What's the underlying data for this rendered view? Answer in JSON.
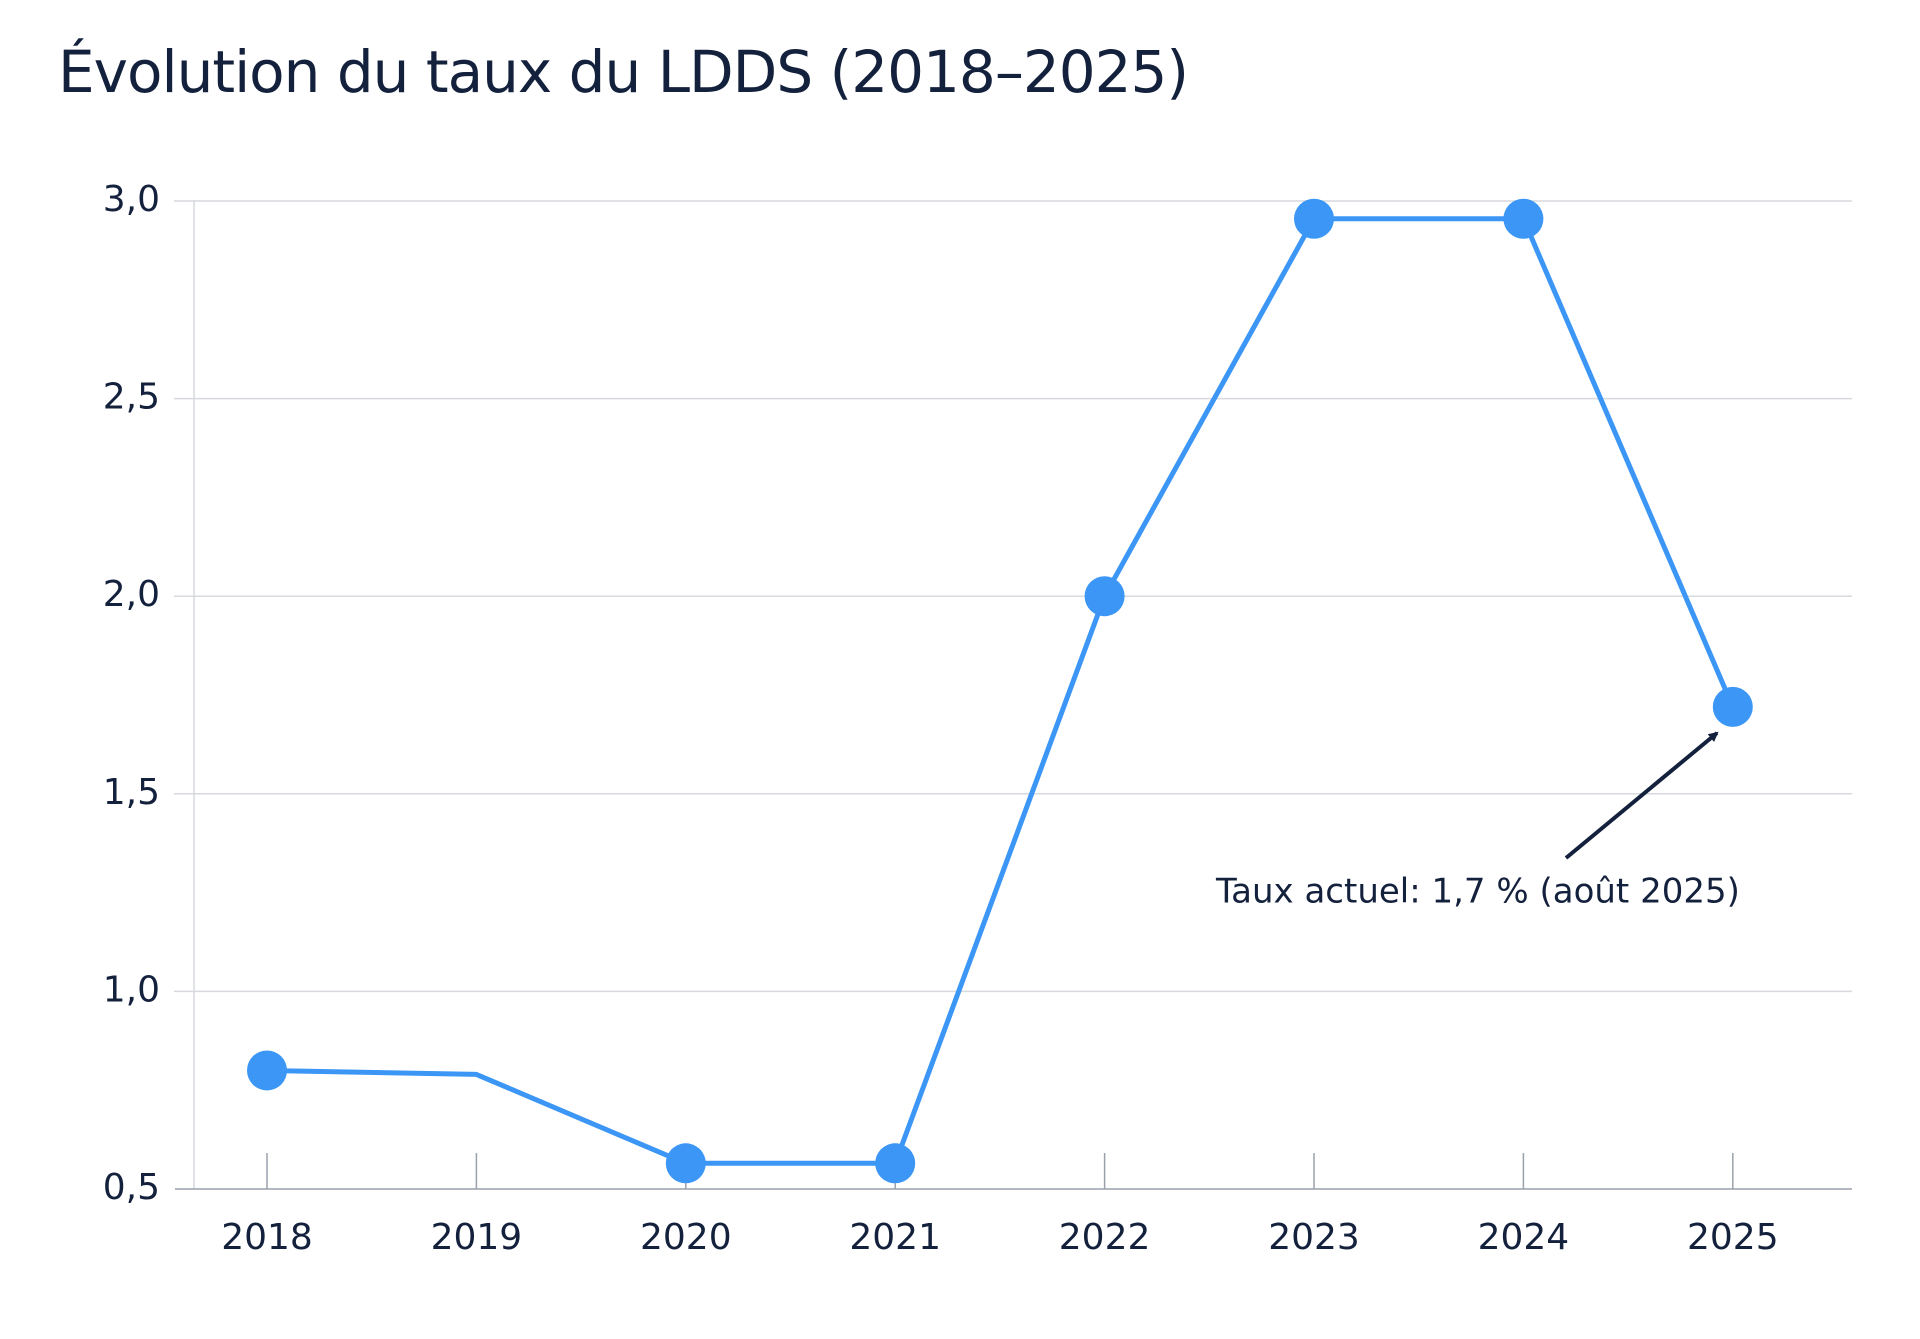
{
  "chart_data": {
    "type": "line",
    "title": "Évolution du taux du LDDS (2018–2025)",
    "categories": [
      "2018",
      "2019",
      "2020",
      "2021",
      "2022",
      "2023",
      "2024",
      "2025"
    ],
    "series": [
      {
        "color": "#3b96f5",
        "values": [
          0.8,
          0.79,
          0.565,
          0.565,
          2.0,
          2.955,
          2.955,
          1.72
        ],
        "markers": [
          true,
          false,
          true,
          true,
          true,
          true,
          true,
          true
        ]
      }
    ],
    "ylim": [
      0.5,
      3.0
    ],
    "yticks": [
      {
        "value": 0.5,
        "label": "0,5"
      },
      {
        "value": 1.0,
        "label": "1,0"
      },
      {
        "value": 1.5,
        "label": "1,5"
      },
      {
        "value": 2.0,
        "label": "2,0"
      },
      {
        "value": 2.5,
        "label": "2,5"
      },
      {
        "value": 3.0,
        "label": "3,0"
      }
    ],
    "grid": true,
    "annotation": "Taux actuel: 1,7 % (août 2025)"
  }
}
